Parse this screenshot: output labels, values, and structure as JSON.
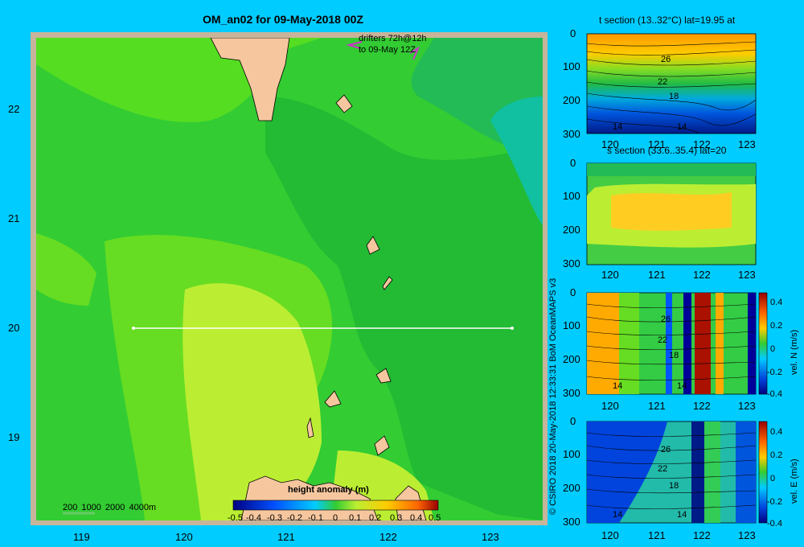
{
  "map": {
    "title": "OM_an02 for 09-May-2018 00Z",
    "drifters_line1": "drifters 72h@12h",
    "drifters_line2": "to 09-May 12Z",
    "lat_ticks": [
      "22",
      "21",
      "20",
      "19"
    ],
    "lon_ticks": [
      "119",
      "120",
      "121",
      "122",
      "123"
    ],
    "depth_legend": "200  1000  2000  4000m",
    "colorbar_title": "height anomaly  (m)",
    "colorbar_ticks": [
      "-0.5",
      "-0.4",
      "-0.3",
      "-0.2",
      "-0.1",
      "0",
      "0.1",
      "0.2",
      "0.3",
      "0.4",
      "0.5"
    ],
    "section_line": {
      "lat": 20,
      "lon_start": 119.5,
      "lon_end": 123.2
    },
    "colors": {
      "land": "#f6c79f",
      "frame": "#c8b49a",
      "line": "#ffffff",
      "drifter": "#cc33cc"
    }
  },
  "panels": [
    {
      "title": "t section (13..32°C) lat=19.95 at",
      "y_ticks": [
        "0",
        "100",
        "200",
        "300"
      ],
      "x_ticks": [
        "120",
        "121",
        "122",
        "123"
      ],
      "contour_labels": [
        "26",
        "22",
        "18",
        "14",
        "14"
      ],
      "has_colorbar": false
    },
    {
      "title": "s section (33.6..35.4) lat=20",
      "y_ticks": [
        "0",
        "100",
        "200",
        "300"
      ],
      "x_ticks": [
        "120",
        "121",
        "122",
        "123"
      ],
      "contour_labels": [],
      "has_colorbar": false
    },
    {
      "title": "",
      "y_ticks": [
        "0",
        "100",
        "200",
        "300"
      ],
      "x_ticks": [
        "120",
        "121",
        "122",
        "123"
      ],
      "contour_labels": [
        "26",
        "22",
        "18",
        "14",
        "14"
      ],
      "has_colorbar": true,
      "colorbar_label": "vel. N (m/s)",
      "colorbar_ticks": [
        "0.4",
        "0.2",
        "0",
        "-0.2",
        "-0.4"
      ]
    },
    {
      "title": "",
      "y_ticks": [
        "0",
        "100",
        "200",
        "300"
      ],
      "x_ticks": [
        "120",
        "121",
        "122",
        "123"
      ],
      "contour_labels": [
        "26",
        "22",
        "18",
        "14",
        "14"
      ],
      "has_colorbar": true,
      "colorbar_label": "vel. E (m/s)",
      "colorbar_ticks": [
        "0.4",
        "0.2",
        "0",
        "-0.2",
        "-0.4"
      ]
    }
  ],
  "credit": "© CSIRO 2018   20-May-2018 12:33:31 BoM OceanMAPS v3",
  "chart_data": [
    {
      "type": "heatmap",
      "title": "OM_an02 for 09-May-2018 00Z",
      "colorbar_label": "height anomaly  (m)",
      "value_range": [
        -0.5,
        0.5
      ],
      "xlim": [
        118.5,
        123.6
      ],
      "ylim": [
        18.2,
        22.7
      ],
      "xlabel": "",
      "ylabel": ""
    },
    {
      "type": "heatmap",
      "title": "t section (13..32°C) lat=19.95 at",
      "xlim": [
        119.6,
        123.2
      ],
      "ylim": [
        300,
        0
      ]
    },
    {
      "type": "heatmap",
      "title": "s section (33.6..35.4) lat=20",
      "xlim": [
        119.6,
        123.2
      ],
      "ylim": [
        300,
        0
      ]
    },
    {
      "type": "heatmap",
      "colorbar_label": "vel. N (m/s)",
      "value_range": [
        -0.4,
        0.4
      ],
      "xlim": [
        119.6,
        123.2
      ],
      "ylim": [
        300,
        0
      ]
    },
    {
      "type": "heatmap",
      "colorbar_label": "vel. E (m/s)",
      "value_range": [
        -0.4,
        0.4
      ],
      "xlim": [
        119.6,
        123.2
      ],
      "ylim": [
        300,
        0
      ]
    }
  ]
}
